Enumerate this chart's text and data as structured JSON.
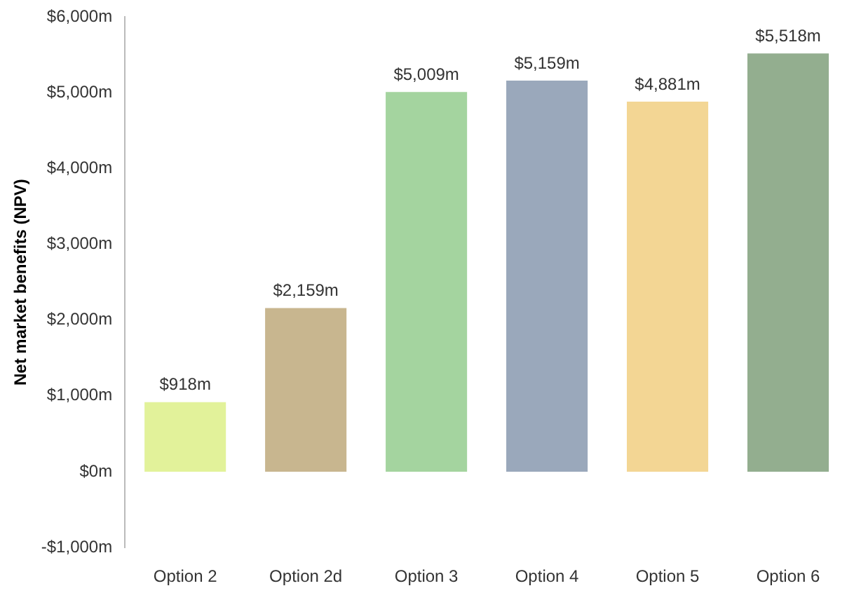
{
  "chart_data": {
    "type": "bar",
    "ylabel": "Net market benefits (NPV)",
    "categories": [
      "Option 2",
      "Option 2d",
      "Option 3",
      "Option 4",
      "Option 5",
      "Option 6"
    ],
    "values": [
      918,
      2159,
      5009,
      5159,
      4881,
      5518
    ],
    "value_labels": [
      "$918m",
      "$2,159m",
      "$5,009m",
      "$5,159m",
      "$4,881m",
      "$5,518m"
    ],
    "colors": [
      "#e2f29a",
      "#c8b68f",
      "#a4d49f",
      "#9aa8bb",
      "#f3d694",
      "#93ae8f"
    ],
    "ylim": [
      -1000,
      6000
    ],
    "yticks": [
      {
        "value": -1000,
        "label": "-$1,000m"
      },
      {
        "value": 0,
        "label": "$0m"
      },
      {
        "value": 1000,
        "label": "$1,000m"
      },
      {
        "value": 2000,
        "label": "$2,000m"
      },
      {
        "value": 3000,
        "label": "$3,000m"
      },
      {
        "value": 4000,
        "label": "$4,000m"
      },
      {
        "value": 5000,
        "label": "$5,000m"
      },
      {
        "value": 6000,
        "label": "$6,000m"
      }
    ],
    "grid": false,
    "legend": false
  }
}
